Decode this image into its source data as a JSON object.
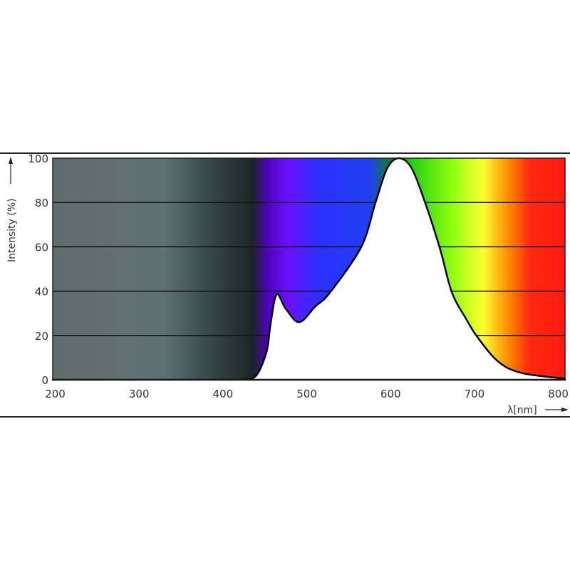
{
  "chart_data": {
    "type": "area",
    "title": "",
    "xlabel": "λ[nm]",
    "ylabel": "Intensity (%)",
    "xlim": [
      197,
      808
    ],
    "ylim": [
      0,
      100
    ],
    "x_ticks": [
      200,
      300,
      400,
      500,
      600,
      700,
      800
    ],
    "y_ticks": [
      0,
      20,
      40,
      60,
      80,
      100
    ],
    "grid": "horizontal",
    "background": "visible light spectrum gradient",
    "series": [
      {
        "x": [
          426,
          440,
          452,
          457,
          464,
          475,
          491,
          510,
          528,
          565,
          582,
          596,
          610,
          625,
          642,
          659,
          673,
          690,
          704,
          729,
          757,
          808
        ],
        "y": [
          0,
          2,
          12.6,
          25.6,
          38.5,
          32,
          26,
          33,
          39.5,
          60,
          80,
          95.5,
          100,
          95.5,
          79,
          59,
          39.5,
          27.5,
          19,
          8,
          3,
          0.5
        ]
      }
    ],
    "colors": {
      "curve_fill": "#ffffff",
      "curve_line": "#000000"
    }
  }
}
